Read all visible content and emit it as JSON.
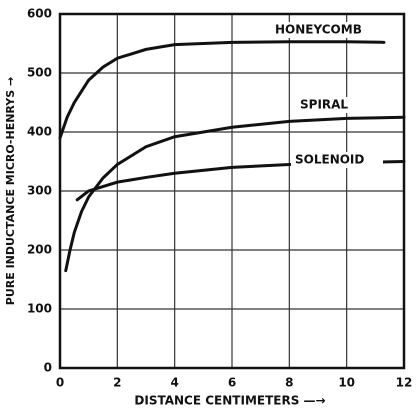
{
  "chart_data": {
    "type": "line",
    "xlabel": "DISTANCE CENTIMETERS —→",
    "ylabel": "PURE INDUCTANCE MICRO-HENRYS →",
    "xlim": [
      0,
      12
    ],
    "xticks": [
      0,
      2,
      4,
      6,
      8,
      10,
      12
    ],
    "ylim": [
      0,
      600
    ],
    "yticks": [
      0,
      100,
      200,
      300,
      400,
      500,
      600
    ],
    "grid": true,
    "series": [
      {
        "name": "HONEYCOMB",
        "color": "#111111",
        "x": [
          0,
          0.25,
          0.5,
          1,
          1.5,
          2,
          3,
          4,
          6,
          8,
          10,
          11.3
        ],
        "values": [
          390,
          425,
          450,
          488,
          510,
          525,
          540,
          548,
          552,
          553,
          553,
          552
        ]
      },
      {
        "name": "SPIRAL",
        "color": "#111111",
        "x": [
          0.2,
          0.35,
          0.5,
          0.75,
          1,
          1.5,
          2,
          3,
          4,
          6,
          8,
          10,
          12
        ],
        "values": [
          165,
          200,
          230,
          265,
          290,
          322,
          345,
          375,
          392,
          408,
          418,
          423,
          425
        ]
      },
      {
        "name": "SOLENOID",
        "color": "#111111",
        "x": [
          0.6,
          1,
          2,
          3,
          4,
          6,
          8,
          10,
          12
        ],
        "values": [
          285,
          300,
          315,
          323,
          330,
          340,
          345,
          348,
          350
        ]
      }
    ]
  }
}
